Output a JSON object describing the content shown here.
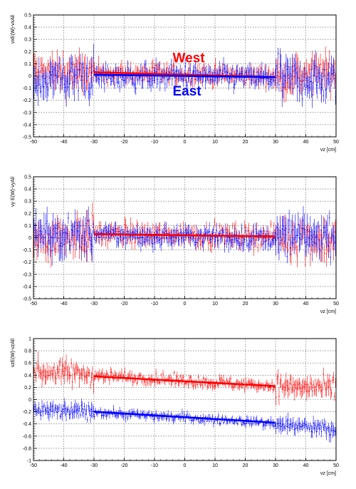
{
  "colors": {
    "west": "#ff0000",
    "east": "#0000ff",
    "grid": "#555555",
    "frame": "#000000"
  },
  "chart_data": [
    {
      "type": "scatter",
      "ylabel": "vxE(W)-vxAll",
      "xlabel": "vz [cm]",
      "xlim": [
        -50,
        50
      ],
      "ylim": [
        -0.5,
        0.5
      ],
      "xticks": [
        -50,
        -40,
        -30,
        -20,
        -10,
        0,
        10,
        20,
        30,
        40,
        50
      ],
      "xtick_labels": [
        "-50",
        "-40",
        "-30",
        "-20",
        "-10",
        "0",
        "10",
        "20",
        "30",
        "40",
        "50"
      ],
      "yticks": [
        -0.5,
        -0.4,
        -0.3,
        -0.2,
        -0.1,
        0,
        0.1,
        0.2,
        0.3,
        0.4,
        0.5
      ],
      "ytick_labels": [
        "-0.5",
        "-0.4",
        "-0.3",
        "-0.2",
        "-0.1",
        "0",
        "0.1",
        "0.2",
        "0.3",
        "0.4",
        "0.5"
      ],
      "grid": true,
      "annotations": [
        {
          "text": "West",
          "color": "#ff0000",
          "vz": -4,
          "value": 0.11
        },
        {
          "text": "East",
          "color": "#0000ff",
          "vz": -4,
          "value": -0.16
        }
      ],
      "series": [
        {
          "name": "West",
          "color": "#ff0000",
          "noise": 0.06,
          "err": 0.05,
          "x": [
            -48,
            -40,
            -30,
            -20,
            -10,
            0,
            10,
            20,
            30,
            40,
            48
          ],
          "values": [
            0.02,
            0.02,
            0.02,
            0.02,
            0.02,
            0.01,
            0.01,
            0.0,
            0.0,
            0.01,
            0.02
          ]
        },
        {
          "name": "East",
          "color": "#0000ff",
          "noise": 0.08,
          "err": 0.05,
          "x": [
            -48,
            -40,
            -30,
            -20,
            -10,
            0,
            10,
            20,
            30,
            40,
            48
          ],
          "values": [
            -0.03,
            -0.02,
            -0.01,
            -0.01,
            0.0,
            0.0,
            -0.01,
            -0.01,
            -0.02,
            -0.03,
            -0.05
          ]
        }
      ],
      "fits": [
        {
          "series": "West",
          "color": "#ff0000",
          "x": [
            -30,
            30
          ],
          "values": [
            0.03,
            -0.01
          ]
        },
        {
          "series": "East",
          "color": "#0000ff",
          "x": [
            -30,
            30
          ],
          "values": [
            0.01,
            -0.01
          ]
        }
      ]
    },
    {
      "type": "scatter",
      "ylabel": "vy E(W)-vyAll",
      "xlabel": "vz [cm]",
      "xlim": [
        -50,
        50
      ],
      "ylim": [
        -0.5,
        0.5
      ],
      "xticks": [
        -50,
        -40,
        -30,
        -20,
        -10,
        0,
        10,
        20,
        30,
        40,
        50
      ],
      "xtick_labels": [
        "-50",
        "-40",
        "-30",
        "-20",
        "-10",
        "0",
        "10",
        "20",
        "30",
        "40",
        "50"
      ],
      "yticks": [
        -0.5,
        -0.4,
        -0.3,
        -0.2,
        -0.1,
        0,
        0.1,
        0.2,
        0.3,
        0.4,
        0.5
      ],
      "ytick_labels": [
        "-0.5",
        "-0.4",
        "-0.3",
        "-0.2",
        "-0.1",
        "0",
        "0.1",
        "0.2",
        "0.3",
        "0.4",
        "0.5"
      ],
      "grid": true,
      "annotations": [],
      "series": [
        {
          "name": "West",
          "color": "#ff0000",
          "noise": 0.07,
          "err": 0.05,
          "x": [
            -48,
            -40,
            -30,
            -20,
            -10,
            0,
            10,
            20,
            30,
            40,
            48
          ],
          "values": [
            0.0,
            0.01,
            0.03,
            0.03,
            0.02,
            0.02,
            0.02,
            0.01,
            0.01,
            0.0,
            -0.02
          ]
        },
        {
          "name": "East",
          "color": "#0000ff",
          "noise": 0.07,
          "err": 0.05,
          "x": [
            -48,
            -40,
            -30,
            -20,
            -10,
            0,
            10,
            20,
            30,
            40,
            48
          ],
          "values": [
            0.02,
            0.02,
            0.02,
            0.02,
            0.01,
            0.01,
            0.01,
            0.0,
            0.0,
            0.01,
            0.02
          ]
        }
      ],
      "fits": [
        {
          "series": "East",
          "color": "#0000ff",
          "x": [
            -30,
            30
          ],
          "values": [
            0.03,
            0.01
          ]
        },
        {
          "series": "West",
          "color": "#ff0000",
          "x": [
            -30,
            30
          ],
          "values": [
            0.03,
            0.01
          ]
        }
      ]
    },
    {
      "type": "scatter",
      "ylabel": "vzE(W)-vzAll",
      "xlabel": "vz [cm]",
      "xlim": [
        -50,
        50
      ],
      "ylim": [
        -1,
        1
      ],
      "xticks": [
        -50,
        -40,
        -30,
        -20,
        -10,
        0,
        10,
        20,
        30,
        40,
        50
      ],
      "xtick_labels": [
        "-50",
        "-40",
        "-30",
        "-20",
        "-10",
        "0",
        "10",
        "20",
        "30",
        "40",
        "50"
      ],
      "yticks": [
        -1,
        -0.8,
        -0.6,
        -0.4,
        -0.2,
        0,
        0.2,
        0.4,
        0.6,
        0.8,
        1
      ],
      "ytick_labels": [
        "-1",
        "-0.8",
        "-0.6",
        "-0.4",
        "-0.2",
        "0",
        "0.2",
        "0.4",
        "0.6",
        "0.8",
        "1"
      ],
      "grid": true,
      "annotations": [],
      "series": [
        {
          "name": "West",
          "color": "#ff0000",
          "noise": 0.08,
          "err": 0.06,
          "x": [
            -48,
            -40,
            -30,
            -20,
            -10,
            0,
            10,
            20,
            30,
            40,
            48
          ],
          "values": [
            0.45,
            0.45,
            0.4,
            0.37,
            0.34,
            0.31,
            0.28,
            0.25,
            0.22,
            0.2,
            0.18
          ]
        },
        {
          "name": "East",
          "color": "#0000ff",
          "noise": 0.06,
          "err": 0.05,
          "x": [
            -48,
            -40,
            -30,
            -20,
            -10,
            0,
            10,
            20,
            30,
            40,
            48
          ],
          "values": [
            -0.18,
            -0.2,
            -0.2,
            -0.24,
            -0.27,
            -0.3,
            -0.33,
            -0.36,
            -0.4,
            -0.45,
            -0.5
          ]
        }
      ],
      "fits": [
        {
          "series": "West",
          "color": "#ff0000",
          "x": [
            -30,
            30
          ],
          "values": [
            0.38,
            0.22
          ]
        },
        {
          "series": "East",
          "color": "#0000ff",
          "x": [
            -30,
            30
          ],
          "values": [
            -0.2,
            -0.38
          ]
        }
      ]
    }
  ]
}
